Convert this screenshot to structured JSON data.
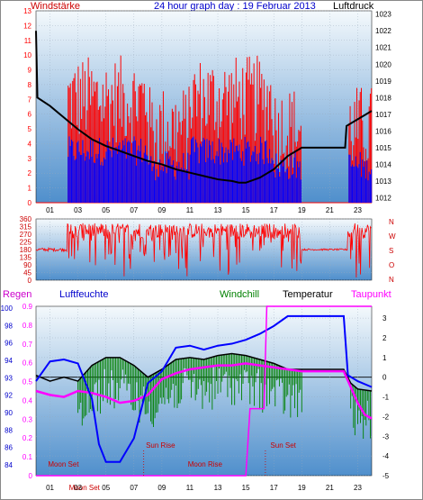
{
  "title": "24 hour graph day : 19 Februar 2013",
  "colors": {
    "red": "#ff0000",
    "blue": "#0000ff",
    "darkblue": "#0000cc",
    "green": "#008000",
    "magenta": "#ff00ff",
    "black": "#000000",
    "darkred": "#cc0000",
    "plot_top": "#f4f9fc",
    "plot_bottom": "#4f8fcc"
  },
  "chart_data": [
    {
      "type": "line",
      "name": "wind-pressure",
      "left_label": "Windstärke",
      "right_label": "Luftdruck",
      "x_ticks": [
        "01",
        "03",
        "05",
        "07",
        "09",
        "11",
        "13",
        "15",
        "17",
        "19",
        "21",
        "23"
      ],
      "y_left_ticks": [
        "0",
        "1",
        "2",
        "3",
        "4",
        "5",
        "6",
        "7",
        "8",
        "9",
        "10",
        "11",
        "12",
        "13"
      ],
      "y_left_range": [
        0,
        13
      ],
      "y_right_ticks": [
        "1012",
        "1013",
        "1014",
        "1015",
        "1016",
        "1017",
        "1018",
        "1019",
        "1020",
        "1021",
        "1022",
        "1023"
      ],
      "y_right_range": [
        1011.7,
        1023.2
      ],
      "grid": true,
      "series": [
        {
          "key": "pressure",
          "color": "#000000",
          "points": [
            [
              0,
              1022
            ],
            [
              0.1,
              1018
            ],
            [
              1,
              1017.5
            ],
            [
              2,
              1016.8
            ],
            [
              3,
              1016.1
            ],
            [
              4,
              1015.5
            ],
            [
              5,
              1015.1
            ],
            [
              6,
              1014.8
            ],
            [
              7,
              1014.5
            ],
            [
              8,
              1014.2
            ],
            [
              9,
              1014.0
            ],
            [
              10,
              1013.7
            ],
            [
              11,
              1013.5
            ],
            [
              12,
              1013.3
            ],
            [
              13,
              1013.1
            ],
            [
              14,
              1013.0
            ],
            [
              14.5,
              1012.9
            ],
            [
              15,
              1012.9
            ],
            [
              16,
              1013.2
            ],
            [
              17,
              1013.7
            ],
            [
              18,
              1014.5
            ],
            [
              19,
              1015.0
            ],
            [
              22.1,
              1015.0
            ],
            [
              22.2,
              1016.3
            ],
            [
              23,
              1016.7
            ],
            [
              24,
              1017.2
            ]
          ]
        }
      ]
    },
    {
      "type": "line",
      "name": "wind-direction",
      "right_label_letters": [
        "N",
        "W",
        "S",
        "O",
        "N"
      ],
      "y_left_ticks": [
        "0",
        "45",
        "90",
        "135",
        "180",
        "225",
        "270",
        "315",
        "360"
      ],
      "y_range": [
        0,
        360
      ],
      "grid": true
    },
    {
      "type": "line",
      "name": "climate",
      "labels": {
        "regen": "Regen",
        "luftfeuchte": "Luftfeuchte",
        "windchill": "Windchill",
        "temperatur": "Temperatur",
        "taupunkt": "Taupunkt"
      },
      "y_left1_ticks": [
        "0",
        "0.1",
        "0.2",
        "0.3",
        "0.4",
        "0.5",
        "0.6",
        "0.7",
        "0.8",
        "0.9"
      ],
      "y_left1_range": [
        0,
        0.9
      ],
      "y_left2_ticks": [
        "84",
        "86",
        "88",
        "90",
        "92",
        "93",
        "94",
        "96",
        "98",
        "100"
      ],
      "y_right_ticks": [
        "3",
        "2",
        "1",
        "0",
        "-1",
        "-2",
        "-3",
        "-4",
        "-5"
      ],
      "y_right_range": [
        -5,
        3.6
      ],
      "x_ticks": [
        "01",
        "03",
        "05",
        "07",
        "09",
        "11",
        "13",
        "15",
        "17",
        "19",
        "21",
        "23"
      ],
      "annotations": [
        "Moon Set",
        "Moon Set",
        "Sun Rise",
        "Moon Rise",
        "Sun Set"
      ],
      "grid": true,
      "series": [
        {
          "key": "temperature",
          "color": "#000000",
          "points": [
            [
              0,
              0.1
            ],
            [
              1,
              -0.2
            ],
            [
              2,
              0
            ],
            [
              3,
              -0.2
            ],
            [
              4,
              0.6
            ],
            [
              5,
              1.0
            ],
            [
              6,
              1.0
            ],
            [
              7,
              0.6
            ],
            [
              8,
              0.0
            ],
            [
              9,
              0.4
            ],
            [
              10,
              0.9
            ],
            [
              11,
              1.0
            ],
            [
              12,
              0.9
            ],
            [
              13,
              1.1
            ],
            [
              14,
              1.2
            ],
            [
              15,
              1.1
            ],
            [
              16,
              0.9
            ],
            [
              17,
              0.7
            ],
            [
              18,
              0.4
            ],
            [
              19,
              0.4
            ],
            [
              22,
              0.4
            ],
            [
              22.5,
              -0.3
            ],
            [
              23,
              -0.6
            ],
            [
              24,
              -0.7
            ]
          ]
        },
        {
          "key": "dewpoint",
          "color": "#ff00ff",
          "points": [
            [
              0,
              -0.7
            ],
            [
              1,
              -0.9
            ],
            [
              2,
              -1.0
            ],
            [
              3,
              -0.7
            ],
            [
              4,
              -0.8
            ],
            [
              5,
              -1.0
            ],
            [
              6,
              -1.3
            ],
            [
              7,
              -1.2
            ],
            [
              8,
              -0.9
            ],
            [
              9,
              -0.1
            ],
            [
              10,
              0.2
            ],
            [
              11,
              0.4
            ],
            [
              12,
              0.5
            ],
            [
              13,
              0.6
            ],
            [
              14,
              0.6
            ],
            [
              15,
              0.7
            ],
            [
              16,
              0.6
            ],
            [
              17,
              0.5
            ],
            [
              18,
              0.4
            ],
            [
              19,
              0.3
            ],
            [
              22,
              0.3
            ],
            [
              22.5,
              -0.5
            ],
            [
              23,
              -1.3
            ],
            [
              23.5,
              -1.9
            ],
            [
              24,
              -2.1
            ]
          ]
        },
        {
          "key": "humidity",
          "color": "#0000ff",
          "points": [
            [
              0,
              -0.2
            ],
            [
              1,
              0.8
            ],
            [
              2,
              0.9
            ],
            [
              3,
              0.7
            ],
            [
              4,
              -1.1
            ],
            [
              4.5,
              -3.4
            ],
            [
              5,
              -4.3
            ],
            [
              6,
              -4.3
            ],
            [
              7,
              -3.1
            ],
            [
              8,
              -0.3
            ],
            [
              9,
              0.3
            ],
            [
              10,
              1.5
            ],
            [
              11,
              1.6
            ],
            [
              12,
              1.4
            ],
            [
              13,
              1.6
            ],
            [
              14,
              1.7
            ],
            [
              15,
              1.9
            ],
            [
              16,
              2.2
            ],
            [
              17,
              2.6
            ],
            [
              18,
              3.1
            ],
            [
              21,
              3.1
            ],
            [
              22,
              3.1
            ],
            [
              22.3,
              0.1
            ],
            [
              23,
              -0.2
            ],
            [
              24,
              -0.5
            ]
          ]
        },
        {
          "key": "rain",
          "color": "#ff00ff",
          "points": [
            [
              0,
              -5
            ],
            [
              15,
              -5
            ],
            [
              15.3,
              -1.6
            ],
            [
              16.3,
              -1.6
            ],
            [
              16.5,
              3.6
            ],
            [
              24,
              3.6
            ]
          ]
        }
      ]
    }
  ]
}
